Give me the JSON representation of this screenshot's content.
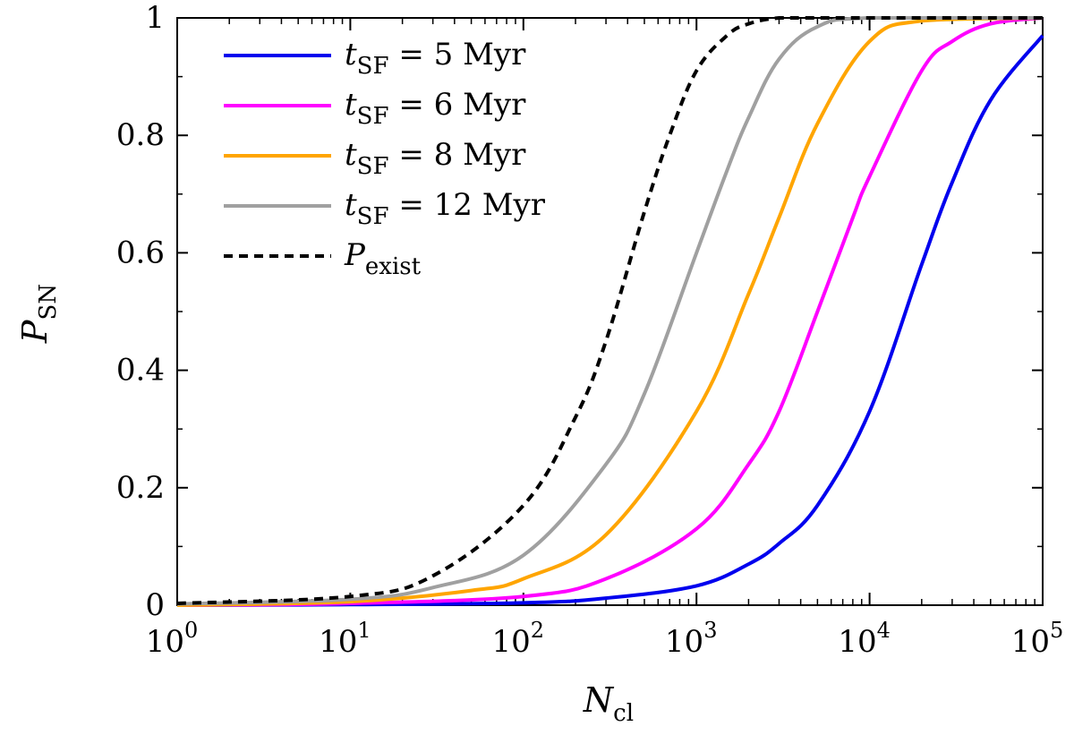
{
  "chart_data": {
    "type": "line",
    "title": "",
    "xscale": "log",
    "xlim": [
      1,
      100000
    ],
    "ylim": [
      0,
      1
    ],
    "xlabel": {
      "main": "N",
      "sub": "cl"
    },
    "ylabel": {
      "main": "P",
      "sub": "SN"
    },
    "xticks": [
      {
        "value": 1,
        "base": "10",
        "exp": "0"
      },
      {
        "value": 10,
        "base": "10",
        "exp": "1"
      },
      {
        "value": 100,
        "base": "10",
        "exp": "2"
      },
      {
        "value": 1000,
        "base": "10",
        "exp": "3"
      },
      {
        "value": 10000,
        "base": "10",
        "exp": "4"
      },
      {
        "value": 100000,
        "base": "10",
        "exp": "5"
      }
    ],
    "yticks": [
      {
        "value": 0,
        "label": "0"
      },
      {
        "value": 0.2,
        "label": "0.2"
      },
      {
        "value": 0.4,
        "label": "0.4"
      },
      {
        "value": 0.6,
        "label": "0.6"
      },
      {
        "value": 0.8,
        "label": "0.8"
      },
      {
        "value": 1,
        "label": "1"
      }
    ],
    "legend_position": "top-left",
    "series": [
      {
        "name": "t_SF = 5 Myr",
        "label": {
          "main": "t",
          "sub": "SF",
          "rest": " = 5 Myr"
        },
        "color": "#0000ee",
        "dash": "solid",
        "x": [
          1,
          10,
          100,
          300,
          1000,
          2000,
          3000,
          5000,
          10000,
          20000,
          30000,
          50000,
          100000
        ],
        "y": [
          0.0,
          0.001,
          0.004,
          0.012,
          0.033,
          0.07,
          0.105,
          0.17,
          0.33,
          0.58,
          0.72,
          0.86,
          0.97
        ]
      },
      {
        "name": "t_SF = 6 Myr",
        "label": {
          "main": "t",
          "sub": "SF",
          "rest": " = 6 Myr"
        },
        "color": "#ff00ff",
        "dash": "solid",
        "x": [
          1,
          10,
          100,
          300,
          1000,
          2000,
          3000,
          5000,
          8000,
          10000,
          20000,
          30000,
          50000,
          100000
        ],
        "y": [
          0.0,
          0.003,
          0.015,
          0.045,
          0.13,
          0.24,
          0.33,
          0.5,
          0.66,
          0.73,
          0.91,
          0.96,
          0.99,
          1.0
        ]
      },
      {
        "name": "t_SF = 8 Myr",
        "label": {
          "main": "t",
          "sub": "SF",
          "rest": " = 8 Myr"
        },
        "color": "#ffa500",
        "dash": "solid",
        "x": [
          1,
          10,
          50,
          100,
          300,
          1000,
          2000,
          3000,
          5000,
          10000,
          20000,
          100000
        ],
        "y": [
          0.0,
          0.006,
          0.025,
          0.045,
          0.12,
          0.33,
          0.53,
          0.66,
          0.82,
          0.96,
          0.995,
          1.0
        ]
      },
      {
        "name": "t_SF = 12 Myr",
        "label": {
          "main": "t",
          "sub": "SF",
          "rest": " = 12 Myr"
        },
        "color": "#a0a0a0",
        "dash": "solid",
        "x": [
          1,
          10,
          30,
          100,
          300,
          500,
          1000,
          1500,
          2000,
          3000,
          5000,
          10000,
          100000
        ],
        "y": [
          0.002,
          0.01,
          0.03,
          0.085,
          0.24,
          0.36,
          0.6,
          0.74,
          0.83,
          0.93,
          0.985,
          1.0,
          1.0
        ]
      },
      {
        "name": "P_exist",
        "label": {
          "main": "P",
          "sub": "exist",
          "rest": ""
        },
        "color": "#000000",
        "dash": "dashed",
        "x": [
          1,
          10,
          30,
          100,
          200,
          300,
          500,
          700,
          1000,
          1500,
          2000,
          3000,
          5000,
          100000
        ],
        "y": [
          0.003,
          0.015,
          0.05,
          0.17,
          0.32,
          0.45,
          0.67,
          0.8,
          0.91,
          0.97,
          0.99,
          1.0,
          1.0,
          1.0
        ]
      }
    ]
  }
}
